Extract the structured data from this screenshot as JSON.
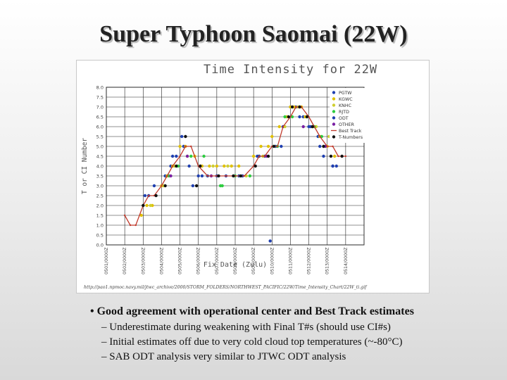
{
  "slide": {
    "title": "Super Typhoon Saomai (22W)",
    "bullet_main": "• Good agreement with operational center and Best Track estimates",
    "sub_bullets": [
      "– Underestimate during weakening with Final T#s (should use CI#s)",
      "– Initial estimates off due to very cold cloud top temperatures (~-80°C)",
      "– SAB ODT analysis very similar to JTWC ODT analysis"
    ]
  },
  "chart_data": {
    "type": "scatter",
    "title": "Time Intensity for 22W",
    "xlabel": "Fix Date (Zulu)",
    "ylabel": "T or CI Number",
    "url": "http://pao1.npmoc.navy.mil/jtwc_archive/2000/STORM_FOLDERS/NORTHWEST_PACIFIC/22W/Time_Intensity_Chart/22W_ti.gif",
    "ylim": [
      0,
      8
    ],
    "yticks": [
      "0.0",
      "0.5",
      "1.0",
      "1.5",
      "2.0",
      "2.5",
      "3.0",
      "3.5",
      "4.0",
      "4.5",
      "5.0",
      "5.5",
      "6.0",
      "6.5",
      "7.0",
      "7.5",
      "8.0"
    ],
    "xlim": [
      0,
      14
    ],
    "xticks": [
      "0501/0000Z",
      "0502/0000Z",
      "0503/0000Z",
      "0504/0000Z",
      "0505/0000Z",
      "0506/0000Z",
      "0507/0000Z",
      "0508/0000Z",
      "0509/0000Z",
      "0510/0000Z",
      "0511/0000Z",
      "0512/0000Z",
      "0513/0000Z",
      "0514/0000Z"
    ],
    "grid": true,
    "legend_position": "top-right",
    "series": [
      {
        "name": "PGTW",
        "color": "#1f3fb0",
        "marker": "dot",
        "x": [
          2.1,
          2.3,
          2.6,
          3.2,
          3.5,
          3.8,
          4.2,
          4.5,
          5.0,
          5.5,
          6.0,
          6.5,
          7.2,
          8.2,
          8.6,
          9.2,
          9.6,
          10.0,
          10.3,
          10.7,
          11.0,
          11.5,
          11.8,
          12.3
        ],
        "y": [
          2.5,
          2.5,
          3.0,
          3.5,
          4.0,
          4.5,
          5.0,
          4.0,
          3.5,
          3.5,
          3.5,
          3.5,
          3.5,
          4.5,
          4.5,
          5.0,
          6.0,
          7.0,
          7.0,
          6.5,
          6.0,
          5.5,
          4.5,
          4.0
        ]
      },
      {
        "name": "KGWC",
        "color": "#e0c000",
        "marker": "dot",
        "x": [
          1.9,
          2.2,
          2.5,
          3.0,
          3.3,
          3.6,
          4.0,
          4.3,
          4.8,
          5.2,
          5.6,
          6.0,
          6.4,
          6.8,
          7.2,
          8.0,
          8.4,
          8.8,
          9.0,
          9.4,
          9.8,
          10.0,
          10.2,
          10.6,
          10.8,
          11.2,
          11.6,
          12.0,
          12.4
        ],
        "y": [
          1.5,
          2.0,
          2.0,
          3.0,
          3.5,
          4.0,
          5.0,
          5.0,
          4.5,
          4.0,
          4.0,
          4.0,
          4.0,
          4.0,
          4.0,
          4.5,
          5.0,
          5.0,
          5.5,
          6.0,
          6.5,
          7.0,
          7.0,
          7.0,
          6.5,
          6.0,
          5.5,
          5.0,
          4.5
        ]
      },
      {
        "name": "KNHC",
        "color": "#cfcf30",
        "marker": "dot",
        "x": [
          2.4,
          3.1,
          3.7,
          4.4,
          5.1,
          5.8,
          6.6,
          7.6,
          8.5,
          9.1,
          9.7,
          10.4,
          10.9,
          11.4,
          12.1
        ],
        "y": [
          2.0,
          3.0,
          4.0,
          4.5,
          4.0,
          4.0,
          4.0,
          3.5,
          4.5,
          5.0,
          6.0,
          7.0,
          6.5,
          6.0,
          5.5
        ]
      },
      {
        "name": "RJTD",
        "color": "#2ecc40",
        "marker": "dot",
        "x": [
          3.4,
          3.9,
          4.6,
          5.3,
          6.2,
          6.3,
          7.0,
          7.8,
          8.3,
          9.3,
          9.7,
          10.1,
          10.9,
          11.3,
          11.7,
          12.2,
          12.6
        ],
        "y": [
          3.5,
          4.0,
          4.5,
          4.5,
          3.0,
          3.0,
          3.5,
          3.5,
          4.5,
          5.0,
          6.5,
          6.5,
          6.5,
          6.0,
          5.5,
          5.5,
          5.5
        ]
      },
      {
        "name": "ODT",
        "color": "#1f3fb0",
        "marker": "dot",
        "x": [
          3.6,
          4.1,
          4.7,
          5.2,
          7.4,
          8.3,
          8.9,
          9.5,
          10.5,
          11.1,
          11.6,
          12.3,
          12.5
        ],
        "y": [
          4.5,
          5.5,
          3.0,
          3.5,
          3.5,
          4.5,
          0.2,
          5.0,
          6.5,
          6.0,
          5.0,
          4.0,
          4.0
        ]
      },
      {
        "name": "OTHER",
        "color": "#7a1fa2",
        "marker": "dot",
        "x": [
          3.5,
          4.4,
          5.7,
          8.7,
          10.7,
          11.9
        ],
        "y": [
          3.5,
          4.5,
          3.5,
          4.5,
          6.0,
          5.0
        ]
      },
      {
        "name": "Best Track",
        "color": "#c0392b",
        "marker": "line",
        "x": [
          1.0,
          1.3,
          1.6,
          2.0,
          2.3,
          2.6,
          3.0,
          3.3,
          3.6,
          4.0,
          4.3,
          4.6,
          5.0,
          5.5,
          6.0,
          6.5,
          7.0,
          7.5,
          8.0,
          8.3,
          8.6,
          9.0,
          9.3,
          9.6,
          10.0,
          10.3,
          10.6,
          11.0,
          11.3,
          11.6,
          12.0,
          12.3,
          12.6,
          13.0
        ],
        "y": [
          1.5,
          1.0,
          1.0,
          2.0,
          2.5,
          2.5,
          3.0,
          3.5,
          4.0,
          4.5,
          5.0,
          5.0,
          4.0,
          3.5,
          3.5,
          3.5,
          3.5,
          3.5,
          4.0,
          4.5,
          4.5,
          5.0,
          5.0,
          6.0,
          6.5,
          7.0,
          7.0,
          6.5,
          6.0,
          5.5,
          5.0,
          5.0,
          4.5,
          4.5
        ]
      },
      {
        "name": "T-Numbers",
        "color": "#111111",
        "marker": "dot",
        "x": [
          2.0,
          2.7,
          3.2,
          3.8,
          4.3,
          4.9,
          5.1,
          6.1,
          6.9,
          7.3,
          8.1,
          8.8,
          9.1,
          9.9,
          10.1,
          10.5,
          10.9,
          11.2,
          11.8,
          12.2,
          12.8
        ],
        "y": [
          2.0,
          2.5,
          3.0,
          4.0,
          5.5,
          3.0,
          4.0,
          3.5,
          3.5,
          3.5,
          4.0,
          4.5,
          5.0,
          6.5,
          7.0,
          7.0,
          6.5,
          6.0,
          5.0,
          4.5,
          4.5
        ]
      }
    ]
  }
}
